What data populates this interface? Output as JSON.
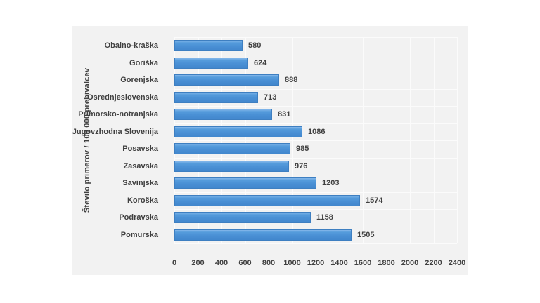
{
  "chart_data": {
    "type": "bar",
    "orientation": "horizontal",
    "title": "",
    "ylabel": "Število primerov / 100 000 prebivalcev",
    "xlabel": "",
    "categories": [
      "Obalno-kraška",
      "Goriška",
      "Gorenjska",
      "Osrednjeslovenska",
      "Primorsko-notranjska",
      "Jugovzhodna Slovenija",
      "Posavska",
      "Zasavska",
      "Savinjska",
      "Koroška",
      "Podravska",
      "Pomurska"
    ],
    "values": [
      580,
      624,
      888,
      713,
      831,
      1086,
      985,
      976,
      1203,
      1574,
      1158,
      1505
    ],
    "xlim": [
      0,
      2400
    ],
    "x_ticks": [
      0,
      200,
      400,
      600,
      800,
      1000,
      1200,
      1400,
      1600,
      1800,
      2000,
      2200,
      2400
    ],
    "grid": "on",
    "legend": "none",
    "colors": {
      "bar_fill": "#4a90d5",
      "bar_border": "#3e7fc1",
      "panel_background": "#f2f2f2",
      "gridline": "#fbfbfb",
      "text": "#404040",
      "page_background": "#ffffff"
    }
  }
}
